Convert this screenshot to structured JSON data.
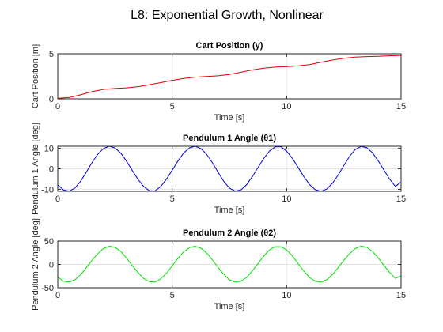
{
  "figure": {
    "title": "L8: Exponential Growth, Nonlinear"
  },
  "chart_data": [
    {
      "type": "line",
      "title": "Cart Position (y)",
      "xlabel": "Time [s]",
      "ylabel": "Cart Position [m]",
      "xlim": [
        0,
        15
      ],
      "ylim": [
        0,
        5
      ],
      "xticks": [
        0,
        5,
        10,
        15
      ],
      "yticks": [
        0,
        5
      ],
      "grid": true,
      "color": "#e00000",
      "series": [
        {
          "x": [
            0,
            0.5,
            1,
            1.5,
            2,
            2.5,
            3,
            3.5,
            4,
            4.5,
            5,
            5.5,
            6,
            6.5,
            7,
            7.5,
            8,
            8.5,
            9,
            9.5,
            10,
            10.5,
            11,
            11.5,
            12,
            12.5,
            13,
            13.5,
            14,
            14.5,
            15
          ],
          "y": [
            0.05,
            0.15,
            0.45,
            0.8,
            1.05,
            1.15,
            1.22,
            1.35,
            1.55,
            1.8,
            2.05,
            2.25,
            2.4,
            2.48,
            2.55,
            2.7,
            2.95,
            3.2,
            3.4,
            3.52,
            3.58,
            3.65,
            3.8,
            4.05,
            4.3,
            4.5,
            4.62,
            4.68,
            4.72,
            4.77,
            4.82
          ]
        }
      ]
    },
    {
      "type": "line",
      "title": "Pendulum 1 Angle (θ1)",
      "xlabel": "Time [s]",
      "ylabel": "Pendulum 1 Angle [deg]",
      "xlim": [
        0,
        15
      ],
      "ylim": [
        -11,
        11
      ],
      "xticks": [
        0,
        5,
        10,
        15
      ],
      "yticks": [
        -10,
        0,
        10
      ],
      "grid": true,
      "color": "#0000dd",
      "series": [
        {
          "x": [
            0,
            0.25,
            0.5,
            0.75,
            1,
            1.25,
            1.5,
            1.75,
            2,
            2.25,
            2.5,
            2.75,
            3,
            3.25,
            3.5,
            3.75,
            4,
            4.25,
            4.5,
            4.75,
            5,
            5.25,
            5.5,
            5.75,
            6,
            6.25,
            6.5,
            6.75,
            7,
            7.25,
            7.5,
            7.75,
            8,
            8.25,
            8.5,
            8.75,
            9,
            9.25,
            9.5,
            9.75,
            10,
            10.25,
            10.5,
            10.75,
            11,
            11.25,
            11.5,
            11.75,
            12,
            12.25,
            12.5,
            12.75,
            13,
            13.25,
            13.5,
            13.75,
            14,
            14.25,
            14.5,
            14.75,
            15
          ],
          "y": [
            -7.8,
            -10.3,
            -10.9,
            -9.4,
            -6.1,
            -1.6,
            3.1,
            7.1,
            9.9,
            11.0,
            10.2,
            7.7,
            3.8,
            -0.7,
            -5.1,
            -8.6,
            -10.7,
            -10.8,
            -8.6,
            -5.1,
            -0.7,
            3.8,
            7.7,
            10.2,
            11.0,
            9.9,
            7.1,
            3.1,
            -1.6,
            -6.1,
            -9.4,
            -10.9,
            -10.3,
            -7.8,
            -3.9,
            0.6,
            5.0,
            8.6,
            10.7,
            10.8,
            8.6,
            5.1,
            0.7,
            -3.8,
            -7.7,
            -10.2,
            -11.0,
            -9.9,
            -7.1,
            -3.1,
            1.6,
            6.1,
            9.4,
            10.9,
            10.3,
            7.8,
            3.9,
            -0.6,
            -5.0,
            -8.6,
            -6.5
          ]
        }
      ]
    },
    {
      "type": "line",
      "title": "Pendulum 2 Angle (θ2)",
      "xlabel": "Time [s]",
      "ylabel": "Pendulum 2 Angle [deg]",
      "xlim": [
        0,
        15
      ],
      "ylim": [
        -50,
        50
      ],
      "xticks": [
        0,
        5,
        10,
        15
      ],
      "yticks": [
        -50,
        0,
        50
      ],
      "grid": true,
      "color": "#00e000",
      "series": [
        {
          "x": [
            0,
            0.25,
            0.5,
            0.75,
            1,
            1.25,
            1.5,
            1.75,
            2,
            2.25,
            2.5,
            2.75,
            3,
            3.25,
            3.5,
            3.75,
            4,
            4.25,
            4.5,
            4.75,
            5,
            5.25,
            5.5,
            5.75,
            6,
            6.25,
            6.5,
            6.75,
            7,
            7.25,
            7.5,
            7.75,
            8,
            8.25,
            8.5,
            8.75,
            9,
            9.25,
            9.5,
            9.75,
            10,
            10.25,
            10.5,
            10.75,
            11,
            11.25,
            11.5,
            11.75,
            12,
            12.25,
            12.5,
            12.75,
            13,
            13.25,
            13.5,
            13.75,
            14,
            14.25,
            14.5,
            14.75,
            15
          ],
          "y": [
            -27,
            -36,
            -38,
            -33,
            -22,
            -7,
            9,
            23,
            34,
            39,
            37,
            28,
            14,
            -2,
            -17,
            -30,
            -37,
            -38,
            -31,
            -19,
            -3,
            13,
            27,
            36,
            39,
            35,
            25,
            10,
            -6,
            -21,
            -33,
            -38,
            -36,
            -28,
            -14,
            2,
            18,
            31,
            38,
            38,
            31,
            18,
            2,
            -14,
            -28,
            -36,
            -38,
            -33,
            -22,
            -7,
            9,
            23,
            34,
            39,
            37,
            28,
            14,
            -2,
            -17,
            -30,
            -24
          ]
        }
      ]
    }
  ]
}
